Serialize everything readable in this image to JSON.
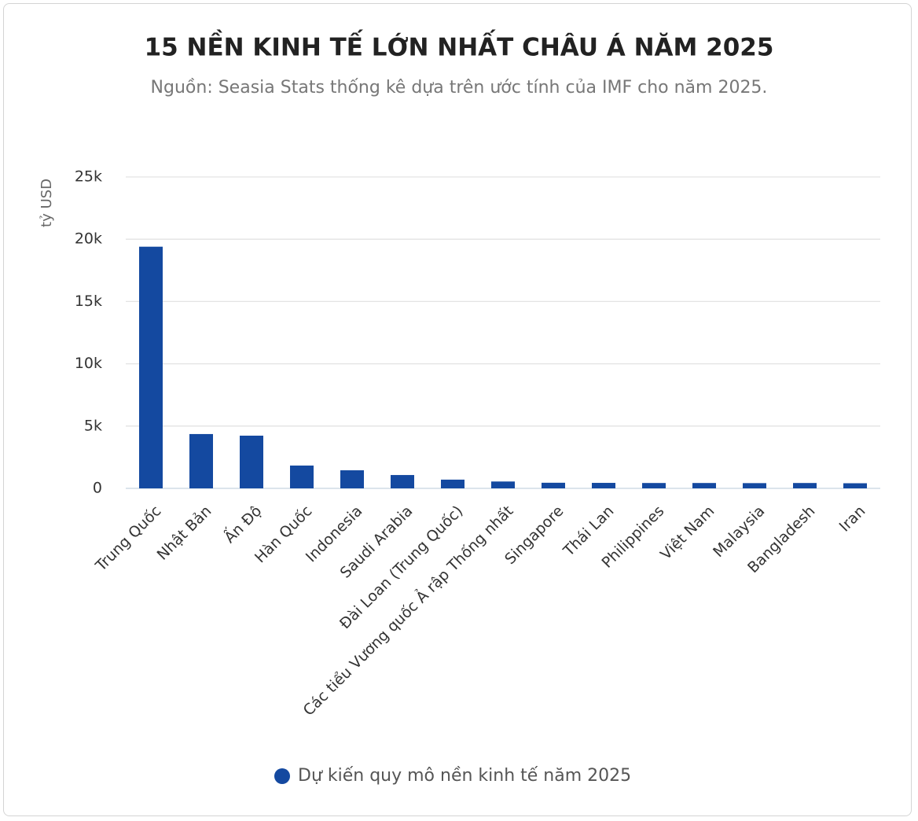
{
  "chart_data": {
    "type": "bar",
    "title": "15 NỀN KINH TẾ LỚN NHẤT CHÂU Á NĂM 2025",
    "subtitle": "Nguồn: Seasia Stats thống kê dựa trên ước tính của IMF cho năm 2025.",
    "y_label": "tỷ USD",
    "categories": [
      "Trung Quốc",
      "Nhật Bản",
      "Ấn Độ",
      "Hàn Quốc",
      "Indonesia",
      "Saudi Arabia",
      "Đài Loan (Trung Quốc)",
      "Các tiểu Vương quốc Ả rập Thống nhất",
      "Singapore",
      "Thái Lan",
      "Philippines",
      "Việt Nam",
      "Malaysia",
      "Bangladesh",
      "Iran"
    ],
    "series": [
      {
        "name": "Dự kiến quy mô nền kinh tế năm 2025",
        "color": "#1449a0",
        "values": [
          19400,
          4360,
          4230,
          1830,
          1450,
          1070,
          700,
          550,
          450,
          440,
          430,
          430,
          420,
          430,
          410
        ]
      }
    ],
    "ylim": [
      0,
      25000
    ],
    "yticks": [
      0,
      {
        "value": 5000,
        "label": "5k"
      },
      {
        "value": 10000,
        "label": "10k"
      },
      {
        "value": 15000,
        "label": "15k"
      },
      {
        "value": 20000,
        "label": "20k"
      },
      {
        "value": 25000,
        "label": "25k"
      }
    ],
    "grid": true
  }
}
